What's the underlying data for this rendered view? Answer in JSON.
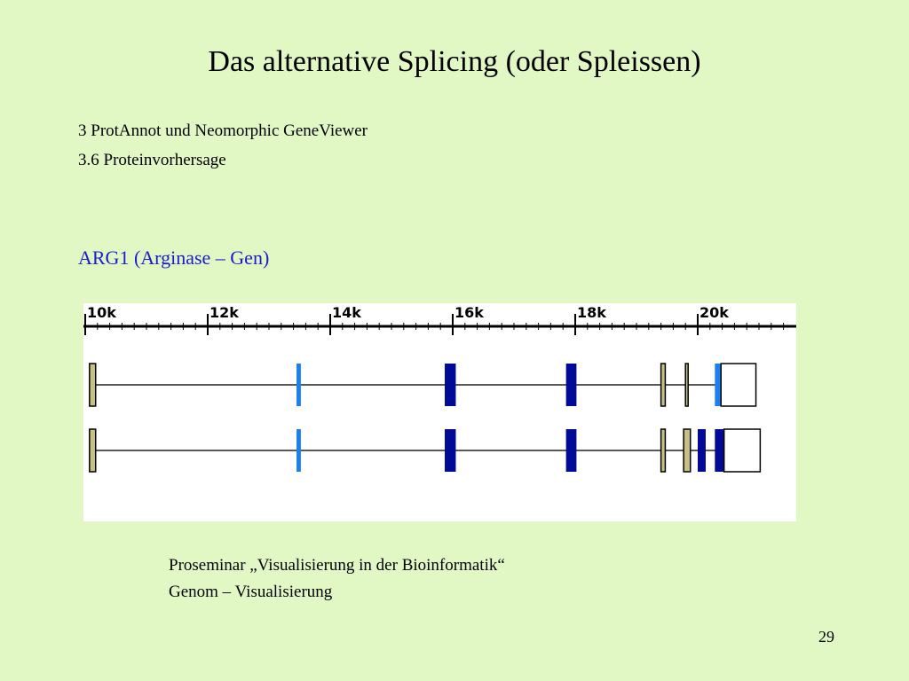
{
  "slide": {
    "title": "Das alternative Splicing (oder Spleissen)",
    "subtitle_line1": "3 ProtAnnot und Neomorphic GeneViewer",
    "subtitle_line2": "3.6 Proteinvorhersage",
    "gene_heading": "ARG1 (Arginase – Gen)",
    "footer_line1": "Proseminar „Visualisierung in der Bioinformatik“",
    "footer_line2": "Genom – Visualisierung",
    "page_number": "29"
  },
  "gene_viewer": {
    "axis": {
      "min_k": 9.8,
      "max_k": 21.3,
      "major_ticks": [
        {
          "label": "10k",
          "value": 10
        },
        {
          "label": "12k",
          "value": 12
        },
        {
          "label": "14k",
          "value": 14
        },
        {
          "label": "16k",
          "value": 16
        },
        {
          "label": "18k",
          "value": 18
        },
        {
          "label": "20k",
          "value": 20
        }
      ],
      "minor_step_k": 0.2
    },
    "colors": {
      "untranslated": "#c8c184",
      "light_coding": "#1a7ff0",
      "dark_coding": "#000a96",
      "intron_line": "#222222",
      "outline": "#000000"
    },
    "transcripts": [
      {
        "start_k": 10.07,
        "end_k": 20.95,
        "exons": [
          {
            "start_k": 10.07,
            "end_k": 10.17,
            "type": "untranslated"
          },
          {
            "start_k": 13.45,
            "end_k": 13.52,
            "type": "light_coding"
          },
          {
            "start_k": 15.87,
            "end_k": 16.05,
            "type": "dark_coding"
          },
          {
            "start_k": 17.85,
            "end_k": 18.02,
            "type": "dark_coding"
          },
          {
            "start_k": 19.4,
            "end_k": 19.47,
            "type": "untranslated"
          },
          {
            "start_k": 19.8,
            "end_k": 19.83,
            "type": "untranslated"
          },
          {
            "start_k": 20.28,
            "end_k": 20.38,
            "type": "light_coding"
          },
          {
            "start_k": 20.38,
            "end_k": 20.95,
            "type": "empty"
          }
        ]
      },
      {
        "start_k": 10.07,
        "end_k": 21.02,
        "exons": [
          {
            "start_k": 10.07,
            "end_k": 10.17,
            "type": "untranslated"
          },
          {
            "start_k": 13.45,
            "end_k": 13.52,
            "type": "light_coding"
          },
          {
            "start_k": 15.87,
            "end_k": 16.05,
            "type": "dark_coding"
          },
          {
            "start_k": 17.85,
            "end_k": 18.02,
            "type": "dark_coding"
          },
          {
            "start_k": 19.4,
            "end_k": 19.47,
            "type": "untranslated"
          },
          {
            "start_k": 19.77,
            "end_k": 19.88,
            "type": "untranslated"
          },
          {
            "start_k": 20.0,
            "end_k": 20.13,
            "type": "dark_coding"
          },
          {
            "start_k": 20.28,
            "end_k": 20.43,
            "type": "dark_coding"
          },
          {
            "start_k": 20.43,
            "end_k": 21.02,
            "type": "empty"
          }
        ]
      }
    ]
  }
}
